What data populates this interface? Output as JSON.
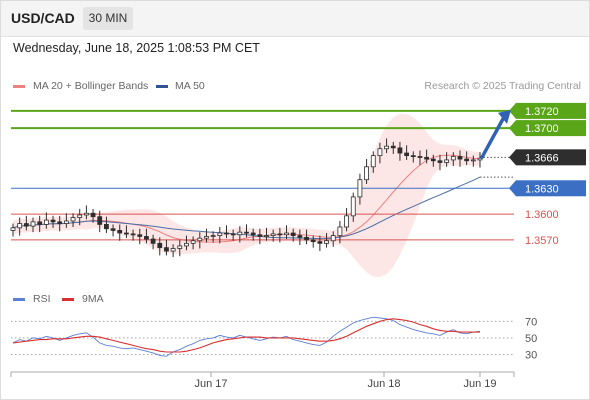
{
  "header": {
    "symbol": "USD/CAD",
    "timeframe": "30 MIN"
  },
  "timestamp": "Wednesday, June 18, 2025 1:08:53 PM CET",
  "legend": {
    "ma20_label": "MA 20 + Bollinger Bands",
    "ma50_label": "MA 50",
    "credit": "Research © 2025 Trading Central"
  },
  "rsi_legend": {
    "rsi_label": "RSI",
    "ma_label": "9MA"
  },
  "colors": {
    "green": "#5aa619",
    "blue": "#3a6fc4",
    "red": "#d9534f",
    "bands": "#fde3e3",
    "ma20": "#f08080",
    "ma50": "#4a6fa5",
    "candle": "#2e2e2e",
    "arrow": "#2f62b3"
  },
  "chart_data": [
    {
      "type": "candlestick",
      "title": "USD/CAD 30 MIN",
      "price_range": [
        1.3535,
        1.3735
      ],
      "x_ticks": [
        "Jun 17",
        "Jun 18",
        "Jun 19"
      ],
      "levels": [
        {
          "label": "1.3720",
          "value": 1.372,
          "color": "#5aa619",
          "style": "badge"
        },
        {
          "label": "1.3700",
          "value": 1.37,
          "color": "#5aa619",
          "style": "badge"
        },
        {
          "label": "1.3666",
          "value": 1.3666,
          "color": "#2e2e2e",
          "style": "badge"
        },
        {
          "label": "1.3630",
          "value": 1.363,
          "color": "#3a6fc4",
          "style": "badge"
        },
        {
          "label": "1.3600",
          "value": 1.36,
          "color": "#d9534f",
          "style": "text"
        },
        {
          "label": "1.3570",
          "value": 1.357,
          "color": "#d9534f",
          "style": "text"
        }
      ],
      "close_path": [
        1.3584,
        1.3589,
        1.3586,
        1.3591,
        1.3588,
        1.3593,
        1.3591,
        1.3589,
        1.3592,
        1.3596,
        1.3599,
        1.3601,
        1.3597,
        1.3588,
        1.3583,
        1.3581,
        1.3578,
        1.3577,
        1.3576,
        1.3574,
        1.3571,
        1.3566,
        1.3561,
        1.3557,
        1.356,
        1.3563,
        1.3566,
        1.3569,
        1.3572,
        1.3574,
        1.3575,
        1.3578,
        1.3577,
        1.3576,
        1.3579,
        1.3578,
        1.3576,
        1.3574,
        1.3575,
        1.3577,
        1.3576,
        1.3578,
        1.3575,
        1.3573,
        1.357,
        1.3568,
        1.3566,
        1.3569,
        1.3575,
        1.3585,
        1.3598,
        1.362,
        1.364,
        1.3655,
        1.3668,
        1.3676,
        1.3679,
        1.3677,
        1.3671,
        1.3668,
        1.3667,
        1.3666,
        1.3664,
        1.3662,
        1.366,
        1.3663,
        1.3667,
        1.3664,
        1.3662,
        1.3663,
        1.3665
      ],
      "series": [
        {
          "name": "MA 20 + Bollinger Bands"
        },
        {
          "name": "MA 50"
        }
      ],
      "forecast": {
        "from": 1.3666,
        "to": 1.372
      }
    },
    {
      "type": "line",
      "title": "RSI",
      "y_ticks": [
        70,
        50,
        30
      ],
      "series": [
        {
          "name": "RSI",
          "color": "#5b7fd6",
          "values": [
            44,
            48,
            46,
            50,
            49,
            52,
            50,
            47,
            50,
            53,
            55,
            56,
            51,
            44,
            41,
            40,
            38,
            37,
            38,
            36,
            34,
            32,
            29,
            28,
            33,
            36,
            40,
            43,
            47,
            49,
            50,
            53,
            51,
            50,
            53,
            51,
            49,
            47,
            49,
            51,
            50,
            52,
            48,
            46,
            44,
            42,
            41,
            45,
            52,
            58,
            63,
            68,
            71,
            73,
            75,
            74,
            73,
            71,
            66,
            63,
            60,
            58,
            56,
            55,
            53,
            57,
            60,
            56,
            55,
            57,
            58
          ]
        },
        {
          "name": "9MA",
          "color": "#d83030",
          "values": [
            44,
            45,
            46,
            47,
            48,
            48,
            49,
            49,
            49,
            50,
            51,
            52,
            52,
            51,
            49,
            47,
            45,
            43,
            41,
            39,
            37,
            36,
            34,
            33,
            33,
            33,
            34,
            36,
            38,
            41,
            44,
            46,
            48,
            49,
            50,
            51,
            51,
            51,
            50,
            50,
            50,
            50,
            50,
            49,
            48,
            47,
            46,
            46,
            47,
            49,
            52,
            56,
            60,
            64,
            67,
            70,
            72,
            73,
            72,
            71,
            69,
            66,
            64,
            61,
            59,
            58,
            58,
            57,
            57,
            57,
            57
          ]
        }
      ]
    }
  ]
}
